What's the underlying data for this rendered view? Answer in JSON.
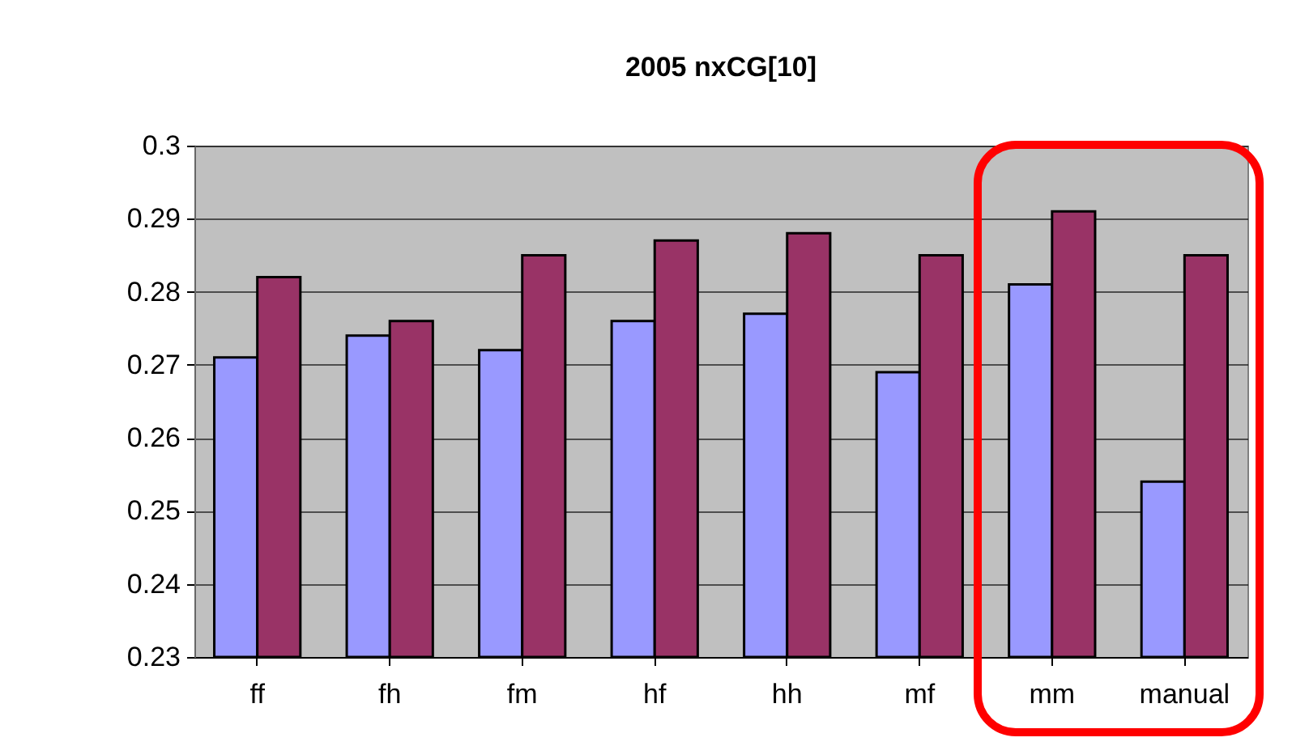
{
  "chart_data": {
    "type": "bar",
    "title": "2005 nxCG[10]",
    "categories": [
      "ff",
      "fh",
      "fm",
      "hf",
      "hh",
      "mf",
      "mm",
      "manual"
    ],
    "series": [
      {
        "color": "#9999ff",
        "values": [
          0.271,
          0.274,
          0.272,
          0.276,
          0.277,
          0.269,
          0.281,
          0.254
        ]
      },
      {
        "color": "#993366",
        "values": [
          0.282,
          0.276,
          0.285,
          0.287,
          0.288,
          0.285,
          0.291,
          0.285
        ]
      }
    ],
    "ylim": [
      0.23,
      0.3
    ],
    "yticks": [
      0.23,
      0.24,
      0.25,
      0.26,
      0.27,
      0.28,
      0.29,
      0.3
    ],
    "grid": "y",
    "legend": false
  }
}
